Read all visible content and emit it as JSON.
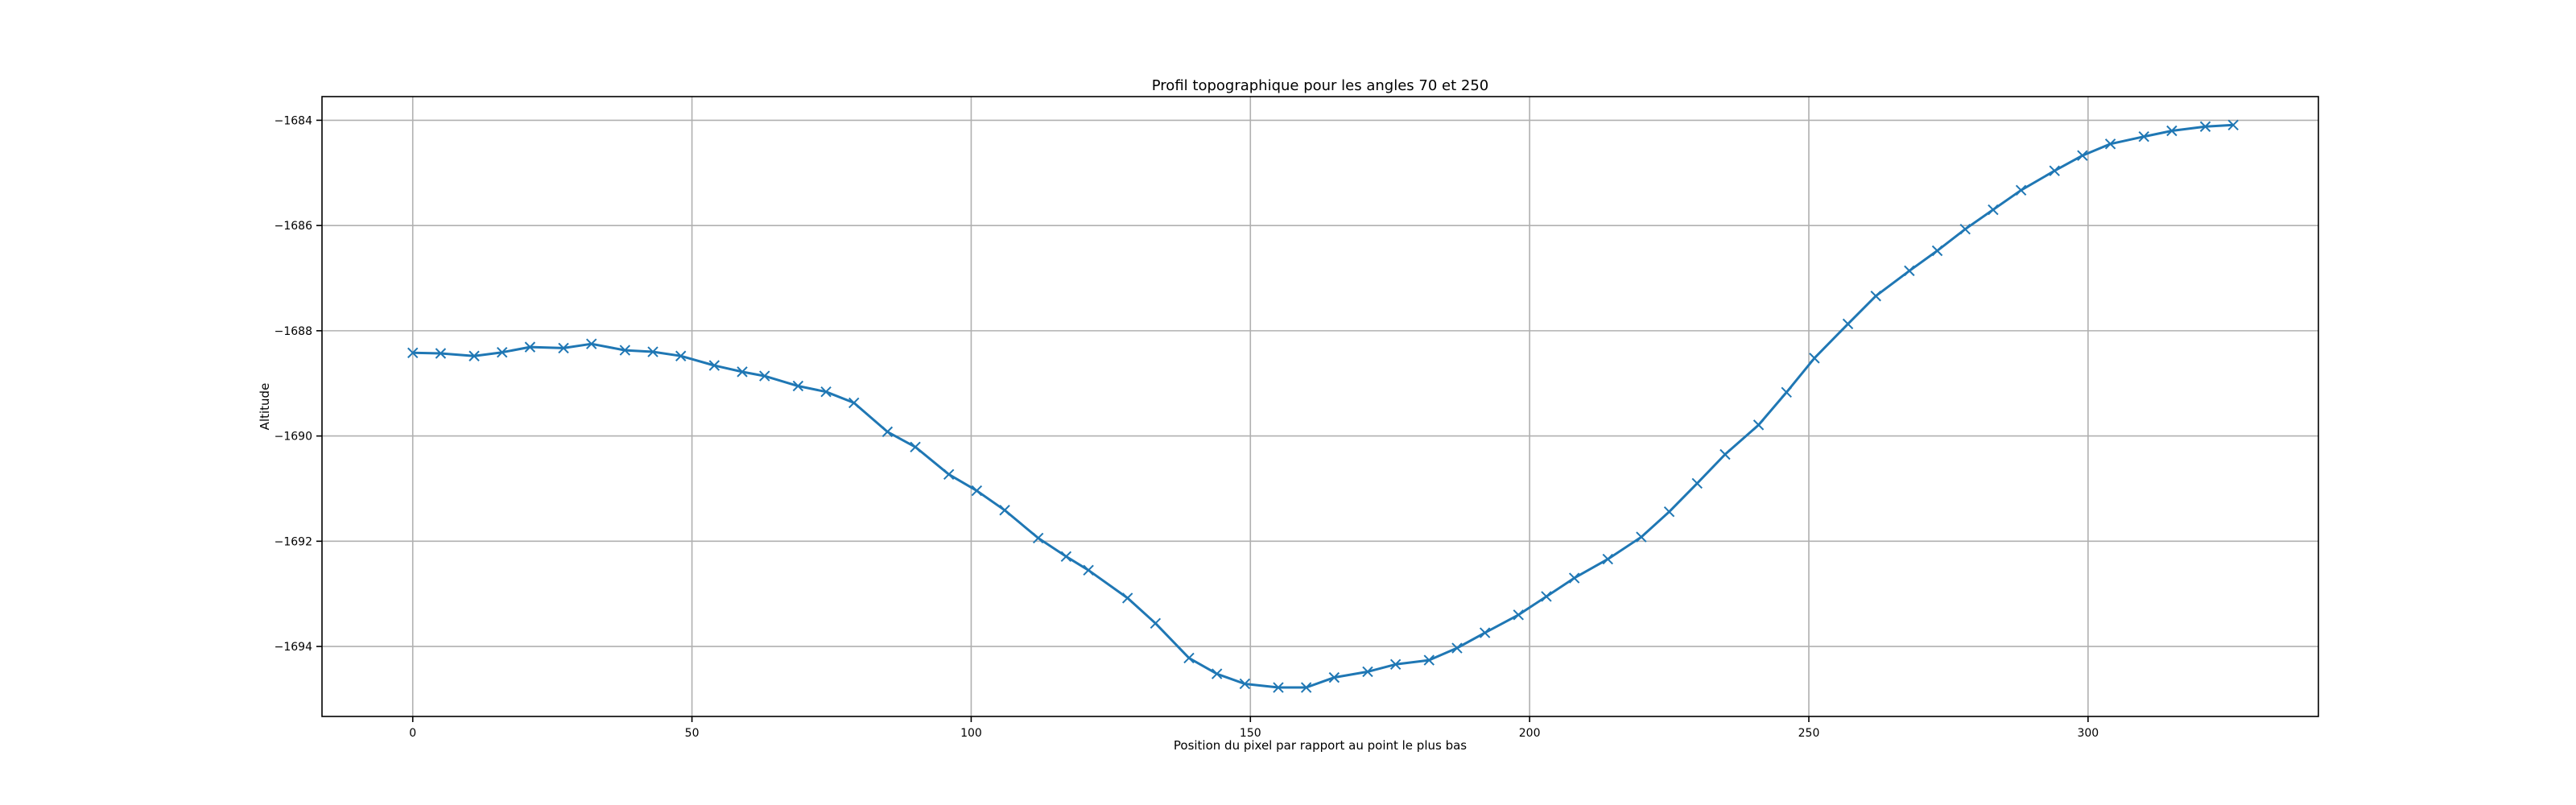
{
  "chart_data": {
    "type": "line",
    "title": "Profil topographique pour les angles 70 et 250",
    "xlabel": "Position du pixel par rapport au point le plus bas",
    "ylabel": "Altitude",
    "xlim": [
      -16.25,
      341.25
    ],
    "ylim": [
      -1695.33,
      -1683.55
    ],
    "xticks": [
      0,
      50,
      100,
      150,
      200,
      250,
      300
    ],
    "xtick_labels": [
      "0",
      "50",
      "100",
      "150",
      "200",
      "250",
      "300"
    ],
    "yticks": [
      -1684,
      -1686,
      -1688,
      -1690,
      -1692,
      -1694
    ],
    "ytick_labels": [
      "−1684",
      "−1686",
      "−1688",
      "−1690",
      "−1692",
      "−1694"
    ],
    "grid": true,
    "series": [
      {
        "color": "#1f77b4",
        "marker": "x",
        "x": [
          0,
          5,
          11,
          16,
          21,
          27,
          32,
          38,
          43,
          48,
          54,
          59,
          63,
          69,
          74,
          79,
          85,
          90,
          96,
          101,
          106,
          112,
          117,
          121,
          128,
          133,
          139,
          144,
          149,
          155,
          160,
          165,
          171,
          176,
          182,
          187,
          192,
          198,
          203,
          208,
          214,
          220,
          225,
          230,
          235,
          241,
          246,
          251,
          257,
          262,
          268,
          273,
          278,
          283,
          288,
          294,
          299,
          304,
          310,
          315,
          321,
          326
        ],
        "y": [
          -1688.42,
          -1688.43,
          -1688.48,
          -1688.41,
          -1688.31,
          -1688.33,
          -1688.25,
          -1688.37,
          -1688.4,
          -1688.48,
          -1688.66,
          -1688.78,
          -1688.86,
          -1689.05,
          -1689.16,
          -1689.37,
          -1689.92,
          -1690.21,
          -1690.73,
          -1691.04,
          -1691.41,
          -1691.94,
          -1692.29,
          -1692.55,
          -1693.08,
          -1693.56,
          -1694.22,
          -1694.52,
          -1694.71,
          -1694.78,
          -1694.78,
          -1694.59,
          -1694.48,
          -1694.34,
          -1694.26,
          -1694.03,
          -1693.74,
          -1693.4,
          -1693.05,
          -1692.7,
          -1692.34,
          -1691.92,
          -1691.44,
          -1690.9,
          -1690.35,
          -1689.79,
          -1689.17,
          -1688.52,
          -1687.87,
          -1687.34,
          -1686.86,
          -1686.48,
          -1686.07,
          -1685.7,
          -1685.33,
          -1684.96,
          -1684.67,
          -1684.45,
          -1684.31,
          -1684.2,
          -1684.12,
          -1684.09
        ]
      }
    ]
  }
}
